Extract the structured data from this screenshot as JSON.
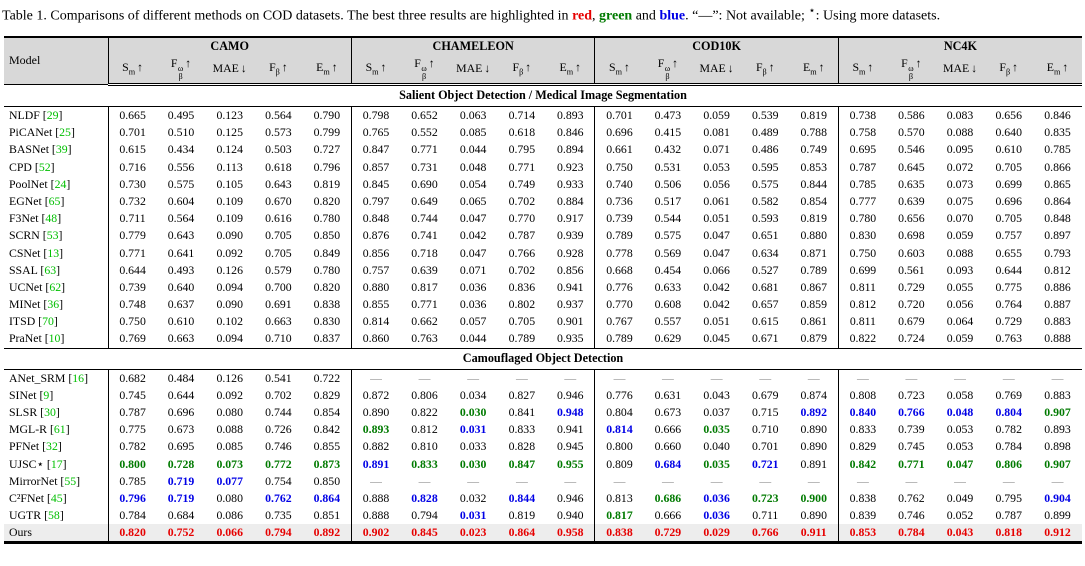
{
  "caption": {
    "part1": "Table 1. Comparisons of different methods on COD datasets. The best three results are highlighted in ",
    "red_word": "red",
    "part2": ", ",
    "green_word": "green",
    "part3": " and ",
    "blue_word": "blue",
    "part4": ". “—”: Not available; ",
    "star": "⋆",
    "part5": ": Using more datasets."
  },
  "colors": {
    "red": "#e60000",
    "green": "#007a00",
    "blue": "#0000e6",
    "citation": "#00bf00",
    "header_bg": "#d8d8d8",
    "ours_bg": "#ededed",
    "dash": "#8a8a8a"
  },
  "table": {
    "model_header": "Model",
    "dataset_groups": [
      "CAMO",
      "CHAMELEON",
      "COD10K",
      "NC4K"
    ],
    "metric_headers": [
      {
        "base": "S",
        "sub": "m",
        "sup": "",
        "arrow": "↑"
      },
      {
        "base": "F",
        "sub": "β",
        "sup": "ω",
        "arrow": "↑"
      },
      {
        "base": "MAE",
        "sub": "",
        "sup": "",
        "arrow": "↓"
      },
      {
        "base": "F",
        "sub": "β",
        "sup": "",
        "arrow": "↑"
      },
      {
        "base": "E",
        "sub": "m",
        "sup": "",
        "arrow": "↑"
      }
    ],
    "sections": [
      {
        "title": "Salient Object Detection / Medical Image Segmentation",
        "rows": [
          {
            "model": "NLDF",
            "ref": "29",
            "values": [
              "0.665",
              "0.495",
              "0.123",
              "0.564",
              "0.790",
              "0.798",
              "0.652",
              "0.063",
              "0.714",
              "0.893",
              "0.701",
              "0.473",
              "0.059",
              "0.539",
              "0.819",
              "0.738",
              "0.586",
              "0.083",
              "0.656",
              "0.846"
            ],
            "marks": {}
          },
          {
            "model": "PiCANet",
            "ref": "25",
            "values": [
              "0.701",
              "0.510",
              "0.125",
              "0.573",
              "0.799",
              "0.765",
              "0.552",
              "0.085",
              "0.618",
              "0.846",
              "0.696",
              "0.415",
              "0.081",
              "0.489",
              "0.788",
              "0.758",
              "0.570",
              "0.088",
              "0.640",
              "0.835"
            ],
            "marks": {}
          },
          {
            "model": "BASNet",
            "ref": "39",
            "values": [
              "0.615",
              "0.434",
              "0.124",
              "0.503",
              "0.727",
              "0.847",
              "0.771",
              "0.044",
              "0.795",
              "0.894",
              "0.661",
              "0.432",
              "0.071",
              "0.486",
              "0.749",
              "0.695",
              "0.546",
              "0.095",
              "0.610",
              "0.785"
            ],
            "marks": {}
          },
          {
            "model": "CPD",
            "ref": "52",
            "values": [
              "0.716",
              "0.556",
              "0.113",
              "0.618",
              "0.796",
              "0.857",
              "0.731",
              "0.048",
              "0.771",
              "0.923",
              "0.750",
              "0.531",
              "0.053",
              "0.595",
              "0.853",
              "0.787",
              "0.645",
              "0.072",
              "0.705",
              "0.866"
            ],
            "marks": {}
          },
          {
            "model": "PoolNet",
            "ref": "24",
            "values": [
              "0.730",
              "0.575",
              "0.105",
              "0.643",
              "0.819",
              "0.845",
              "0.690",
              "0.054",
              "0.749",
              "0.933",
              "0.740",
              "0.506",
              "0.056",
              "0.575",
              "0.844",
              "0.785",
              "0.635",
              "0.073",
              "0.699",
              "0.865"
            ],
            "marks": {}
          },
          {
            "model": "EGNet",
            "ref": "65",
            "values": [
              "0.732",
              "0.604",
              "0.109",
              "0.670",
              "0.820",
              "0.797",
              "0.649",
              "0.065",
              "0.702",
              "0.884",
              "0.736",
              "0.517",
              "0.061",
              "0.582",
              "0.854",
              "0.777",
              "0.639",
              "0.075",
              "0.696",
              "0.864"
            ],
            "marks": {}
          },
          {
            "model": "F3Net",
            "ref": "48",
            "values": [
              "0.711",
              "0.564",
              "0.109",
              "0.616",
              "0.780",
              "0.848",
              "0.744",
              "0.047",
              "0.770",
              "0.917",
              "0.739",
              "0.544",
              "0.051",
              "0.593",
              "0.819",
              "0.780",
              "0.656",
              "0.070",
              "0.705",
              "0.848"
            ],
            "marks": {}
          },
          {
            "model": "SCRN",
            "ref": "53",
            "values": [
              "0.779",
              "0.643",
              "0.090",
              "0.705",
              "0.850",
              "0.876",
              "0.741",
              "0.042",
              "0.787",
              "0.939",
              "0.789",
              "0.575",
              "0.047",
              "0.651",
              "0.880",
              "0.830",
              "0.698",
              "0.059",
              "0.757",
              "0.897"
            ],
            "marks": {}
          },
          {
            "model": "CSNet",
            "ref": "13",
            "values": [
              "0.771",
              "0.641",
              "0.092",
              "0.705",
              "0.849",
              "0.856",
              "0.718",
              "0.047",
              "0.766",
              "0.928",
              "0.778",
              "0.569",
              "0.047",
              "0.634",
              "0.871",
              "0.750",
              "0.603",
              "0.088",
              "0.655",
              "0.793"
            ],
            "marks": {}
          },
          {
            "model": "SSAL",
            "ref": "63",
            "values": [
              "0.644",
              "0.493",
              "0.126",
              "0.579",
              "0.780",
              "0.757",
              "0.639",
              "0.071",
              "0.702",
              "0.856",
              "0.668",
              "0.454",
              "0.066",
              "0.527",
              "0.789",
              "0.699",
              "0.561",
              "0.093",
              "0.644",
              "0.812"
            ],
            "marks": {}
          },
          {
            "model": "UCNet",
            "ref": "62",
            "values": [
              "0.739",
              "0.640",
              "0.094",
              "0.700",
              "0.820",
              "0.880",
              "0.817",
              "0.036",
              "0.836",
              "0.941",
              "0.776",
              "0.633",
              "0.042",
              "0.681",
              "0.867",
              "0.811",
              "0.729",
              "0.055",
              "0.775",
              "0.886"
            ],
            "marks": {}
          },
          {
            "model": "MINet",
            "ref": "36",
            "values": [
              "0.748",
              "0.637",
              "0.090",
              "0.691",
              "0.838",
              "0.855",
              "0.771",
              "0.036",
              "0.802",
              "0.937",
              "0.770",
              "0.608",
              "0.042",
              "0.657",
              "0.859",
              "0.812",
              "0.720",
              "0.056",
              "0.764",
              "0.887"
            ],
            "marks": {}
          },
          {
            "model": "ITSD",
            "ref": "70",
            "values": [
              "0.750",
              "0.610",
              "0.102",
              "0.663",
              "0.830",
              "0.814",
              "0.662",
              "0.057",
              "0.705",
              "0.901",
              "0.767",
              "0.557",
              "0.051",
              "0.615",
              "0.861",
              "0.811",
              "0.679",
              "0.064",
              "0.729",
              "0.883"
            ],
            "marks": {}
          },
          {
            "model": "PraNet",
            "ref": "10",
            "values": [
              "0.769",
              "0.663",
              "0.094",
              "0.710",
              "0.837",
              "0.860",
              "0.763",
              "0.044",
              "0.789",
              "0.935",
              "0.789",
              "0.629",
              "0.045",
              "0.671",
              "0.879",
              "0.822",
              "0.724",
              "0.059",
              "0.763",
              "0.888"
            ],
            "marks": {}
          }
        ]
      },
      {
        "title": "Camouflaged Object Detection",
        "rows": [
          {
            "model": "ANet_SRM",
            "ref": "16",
            "values": [
              "0.682",
              "0.484",
              "0.126",
              "0.541",
              "0.722",
              "—",
              "—",
              "—",
              "—",
              "—",
              "—",
              "—",
              "—",
              "—",
              "—",
              "—",
              "—",
              "—",
              "—",
              "—"
            ],
            "marks": {}
          },
          {
            "model": "SINet",
            "ref": "9",
            "values": [
              "0.745",
              "0.644",
              "0.092",
              "0.702",
              "0.829",
              "0.872",
              "0.806",
              "0.034",
              "0.827",
              "0.946",
              "0.776",
              "0.631",
              "0.043",
              "0.679",
              "0.874",
              "0.808",
              "0.723",
              "0.058",
              "0.769",
              "0.883"
            ],
            "marks": {}
          },
          {
            "model": "SLSR",
            "ref": "30",
            "values": [
              "0.787",
              "0.696",
              "0.080",
              "0.744",
              "0.854",
              "0.890",
              "0.822",
              "0.030",
              "0.841",
              "0.948",
              "0.804",
              "0.673",
              "0.037",
              "0.715",
              "0.892",
              "0.840",
              "0.766",
              "0.048",
              "0.804",
              "0.907"
            ],
            "marks": {
              "7": "g",
              "9": "b",
              "14": "b",
              "15": "b",
              "16": "b",
              "17": "b",
              "18": "b",
              "19": "g"
            }
          },
          {
            "model": "MGL-R",
            "ref": "61",
            "values": [
              "0.775",
              "0.673",
              "0.088",
              "0.726",
              "0.842",
              "0.893",
              "0.812",
              "0.031",
              "0.833",
              "0.941",
              "0.814",
              "0.666",
              "0.035",
              "0.710",
              "0.890",
              "0.833",
              "0.739",
              "0.053",
              "0.782",
              "0.893"
            ],
            "marks": {
              "5": "g",
              "7": "b",
              "10": "b",
              "12": "g"
            }
          },
          {
            "model": "PFNet",
            "ref": "32",
            "values": [
              "0.782",
              "0.695",
              "0.085",
              "0.746",
              "0.855",
              "0.882",
              "0.810",
              "0.033",
              "0.828",
              "0.945",
              "0.800",
              "0.660",
              "0.040",
              "0.701",
              "0.890",
              "0.829",
              "0.745",
              "0.053",
              "0.784",
              "0.898"
            ],
            "marks": {}
          },
          {
            "model": "UJSC⋆",
            "ref": "17",
            "values": [
              "0.800",
              "0.728",
              "0.073",
              "0.772",
              "0.873",
              "0.891",
              "0.833",
              "0.030",
              "0.847",
              "0.955",
              "0.809",
              "0.684",
              "0.035",
              "0.721",
              "0.891",
              "0.842",
              "0.771",
              "0.047",
              "0.806",
              "0.907"
            ],
            "marks": {
              "0": "g",
              "1": "g",
              "2": "g",
              "3": "g",
              "4": "g",
              "5": "b",
              "6": "g",
              "7": "g",
              "8": "g",
              "9": "g",
              "11": "b",
              "12": "g",
              "13": "b",
              "15": "g",
              "16": "g",
              "17": "g",
              "18": "g",
              "19": "g"
            }
          },
          {
            "model": "MirrorNet",
            "ref": "55",
            "values": [
              "0.785",
              "0.719",
              "0.077",
              "0.754",
              "0.850",
              "—",
              "—",
              "—",
              "—",
              "—",
              "—",
              "—",
              "—",
              "—",
              "—",
              "—",
              "—",
              "—",
              "—",
              "—"
            ],
            "marks": {
              "1": "b",
              "2": "b"
            }
          },
          {
            "model": "C²FNet",
            "ref": "45",
            "values": [
              "0.796",
              "0.719",
              "0.080",
              "0.762",
              "0.864",
              "0.888",
              "0.828",
              "0.032",
              "0.844",
              "0.946",
              "0.813",
              "0.686",
              "0.036",
              "0.723",
              "0.900",
              "0.838",
              "0.762",
              "0.049",
              "0.795",
              "0.904"
            ],
            "marks": {
              "0": "b",
              "1": "b",
              "3": "b",
              "4": "b",
              "6": "b",
              "8": "b",
              "11": "g",
              "12": "b",
              "13": "g",
              "14": "g",
              "19": "b"
            }
          },
          {
            "model": "UGTR",
            "ref": "58",
            "values": [
              "0.784",
              "0.684",
              "0.086",
              "0.735",
              "0.851",
              "0.888",
              "0.794",
              "0.031",
              "0.819",
              "0.940",
              "0.817",
              "0.666",
              "0.036",
              "0.711",
              "0.890",
              "0.839",
              "0.746",
              "0.052",
              "0.787",
              "0.899"
            ],
            "marks": {
              "7": "b",
              "10": "g",
              "12": "b"
            }
          },
          {
            "model": "Ours",
            "ref": "",
            "highlight": true,
            "values": [
              "0.820",
              "0.752",
              "0.066",
              "0.794",
              "0.892",
              "0.902",
              "0.845",
              "0.023",
              "0.864",
              "0.958",
              "0.838",
              "0.729",
              "0.029",
              "0.766",
              "0.911",
              "0.853",
              "0.784",
              "0.043",
              "0.818",
              "0.912"
            ],
            "marks": {
              "0": "r",
              "1": "r",
              "2": "r",
              "3": "r",
              "4": "r",
              "5": "r",
              "6": "r",
              "7": "r",
              "8": "r",
              "9": "r",
              "10": "r",
              "11": "r",
              "12": "r",
              "13": "r",
              "14": "r",
              "15": "r",
              "16": "r",
              "17": "r",
              "18": "r",
              "19": "r"
            }
          }
        ]
      }
    ]
  }
}
